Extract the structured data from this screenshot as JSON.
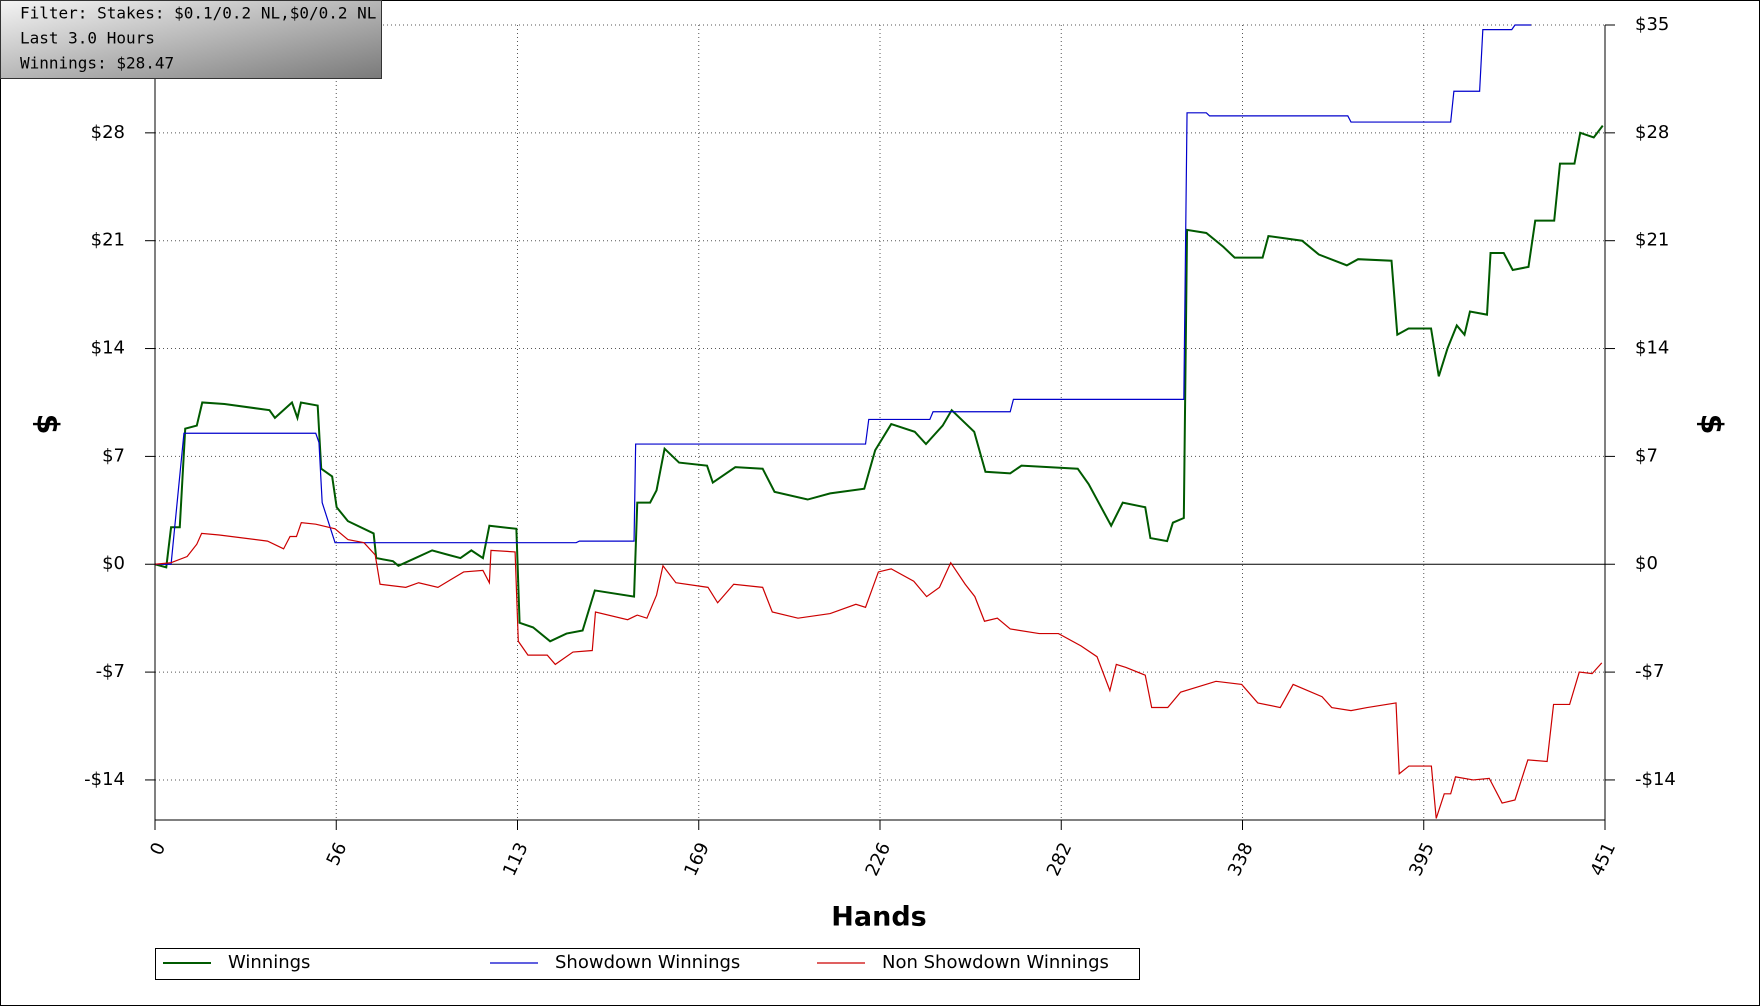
{
  "chart_data": {
    "type": "line",
    "annotations": [
      "Filter: Stakes: $0.1/0.2 NL,$0/0.2 NL",
      "Last 3.0 Hours",
      "Winnings: $28.47"
    ],
    "xlabel": "Hands",
    "ylabel": "$",
    "xlim": [
      0,
      451
    ],
    "xticks": [
      0,
      {
        "value": 56.375,
        "label": "56"
      },
      {
        "value": 112.75,
        "label": "113"
      },
      {
        "value": 169.125,
        "label": "169"
      },
      {
        "value": 225.5,
        "label": "226"
      },
      {
        "value": 281.875,
        "label": "282"
      },
      {
        "value": 338.25,
        "label": "338"
      },
      {
        "value": 394.625,
        "label": "395"
      },
      451
    ],
    "ylim": [
      -16.6,
      35
    ],
    "yticks": [
      {
        "value": -14,
        "label": "-$14"
      },
      {
        "value": -7,
        "label": "-$7"
      },
      {
        "value": 0,
        "label": "$0"
      },
      {
        "value": 7,
        "label": "$7"
      },
      {
        "value": 14,
        "label": "$14"
      },
      {
        "value": 21,
        "label": "$21"
      },
      {
        "value": 28,
        "label": "$28"
      },
      {
        "value": 35,
        "label": "$35"
      }
    ],
    "grid": true,
    "legend": "bottom",
    "series": [
      {
        "name": "Winnings",
        "color": "#005a00",
        "x": [
          0,
          3.5,
          5,
          7.7,
          9.4,
          13,
          14.7,
          21.6,
          35.6,
          37.3,
          42.6,
          44.3,
          45.4,
          50.6,
          51.7,
          55.1,
          56.5,
          60,
          68,
          68.8,
          74,
          75.7,
          81,
          86.2,
          91.4,
          95,
          98.4,
          102,
          104,
          112.4,
          113.4,
          117.6,
          122.9,
          128,
          133,
          136.8,
          149,
          150,
          154,
          156,
          158.5,
          163,
          171.7,
          173.5,
          180.5,
          189,
          192.7,
          203,
          210,
          220.6,
          224,
          229,
          236.3,
          239.8,
          245,
          247.8,
          254.8,
          258.3,
          266,
          269.5,
          287,
          290.4,
          297.4,
          301,
          308,
          309.6,
          314.8,
          316.6,
          320,
          321,
          327,
          332.3,
          335.8,
          344.5,
          346.3,
          356.8,
          362,
          370.7,
          374.2,
          384.6,
          386.4,
          389.9,
          396.9,
          399.3,
          402,
          404.9,
          407.3,
          409,
          414.3,
          415.4,
          419.5,
          422.3,
          427.2,
          429.3,
          435.2,
          437,
          441.5,
          443.3,
          447.5,
          450.3
        ],
        "values": [
          0,
          -0.2,
          2.4,
          2.4,
          8.8,
          9.0,
          10.5,
          10.4,
          10.0,
          9.5,
          10.5,
          9.5,
          10.5,
          10.3,
          6.2,
          5.7,
          3.7,
          2.8,
          2.0,
          0.4,
          0.2,
          -0.1,
          0.4,
          0.9,
          0.6,
          0.4,
          0.9,
          0.4,
          2.5,
          2.3,
          -3.8,
          -4.1,
          -5.0,
          -4.5,
          -4.3,
          -1.7,
          -2.1,
          4.0,
          4.0,
          4.8,
          7.5,
          6.6,
          6.4,
          5.3,
          6.3,
          6.2,
          4.7,
          4.2,
          4.6,
          4.9,
          7.4,
          9.1,
          8.6,
          7.8,
          9.0,
          10.0,
          8.6,
          6.0,
          5.9,
          6.4,
          6.2,
          5.2,
          2.5,
          4.0,
          3.7,
          1.7,
          1.5,
          2.7,
          3.0,
          21.7,
          21.5,
          20.6,
          19.9,
          19.9,
          21.3,
          21.0,
          20.1,
          19.4,
          19.8,
          19.7,
          14.9,
          15.3,
          15.3,
          12.2,
          14.0,
          15.5,
          14.9,
          16.4,
          16.2,
          20.2,
          20.2,
          19.1,
          19.3,
          22.3,
          22.3,
          26.0,
          26.0,
          28.0,
          27.7,
          28.47
        ]
      },
      {
        "name": "Showdown Winnings",
        "color": "#0000cc",
        "x": [
          0,
          5,
          9,
          50,
          51,
          52,
          56,
          131,
          132,
          149,
          149.5,
          221,
          222,
          241,
          242,
          266,
          267,
          320,
          321,
          327,
          328,
          371,
          372,
          403,
          404,
          412,
          413,
          422,
          423,
          428
        ],
        "values": [
          0,
          0,
          8.5,
          8.5,
          7.9,
          4.0,
          1.4,
          1.4,
          1.5,
          1.5,
          7.8,
          7.8,
          9.4,
          9.4,
          9.9,
          9.9,
          10.7,
          10.7,
          29.3,
          29.3,
          29.1,
          29.1,
          28.7,
          28.7,
          30.7,
          30.7,
          34.7,
          34.7,
          35,
          35
        ]
      },
      {
        "name": "Non Showdown Winnings",
        "color": "#cc0000",
        "x": [
          0,
          5,
          10,
          13,
          14.5,
          20,
          35,
          40,
          42,
          44,
          45.5,
          50,
          56,
          60,
          65,
          68.5,
          70,
          78,
          82,
          88,
          92,
          96,
          102,
          104,
          104.5,
          112,
          113,
          116,
          122,
          124.5,
          130,
          136,
          137,
          147,
          150,
          153,
          156,
          158,
          162,
          172,
          175,
          180,
          189,
          192,
          200,
          210,
          218,
          221,
          225,
          229,
          236,
          240,
          244,
          247.5,
          252,
          255,
          258,
          262,
          266,
          275,
          281,
          288,
          293,
          297,
          299,
          302,
          308,
          310,
          315,
          319,
          330,
          338,
          343,
          350,
          354,
          363,
          366,
          372,
          377,
          386,
          387,
          390,
          397,
          398.5,
          401,
          403,
          404.5,
          410,
          415,
          419,
          423,
          427,
          433,
          435,
          440,
          443,
          447,
          450
        ],
        "values": [
          0,
          0.1,
          0.5,
          1.3,
          2.0,
          1.9,
          1.5,
          1.0,
          1.8,
          1.8,
          2.7,
          2.6,
          2.3,
          1.6,
          1.4,
          0.6,
          -1.3,
          -1.5,
          -1.2,
          -1.5,
          -1.0,
          -0.5,
          -0.4,
          -1.2,
          0.9,
          0.8,
          -5.0,
          -5.9,
          -5.9,
          -6.5,
          -5.7,
          -5.6,
          -3.1,
          -3.6,
          -3.3,
          -3.5,
          -2.0,
          -0.1,
          -1.2,
          -1.5,
          -2.5,
          -1.3,
          -1.5,
          -3.1,
          -3.5,
          -3.2,
          -2.6,
          -2.8,
          -0.5,
          -0.3,
          -1.1,
          -2.1,
          -1.5,
          0.1,
          -1.3,
          -2.1,
          -3.7,
          -3.5,
          -4.2,
          -4.5,
          -4.5,
          -5.3,
          -6.0,
          -8.2,
          -6.5,
          -6.7,
          -7.2,
          -9.3,
          -9.3,
          -8.3,
          -7.6,
          -7.8,
          -9.0,
          -9.3,
          -7.8,
          -8.6,
          -9.3,
          -9.5,
          -9.3,
          -9.0,
          -13.6,
          -13.1,
          -13.1,
          -16.5,
          -14.9,
          -14.9,
          -13.8,
          -14.0,
          -13.9,
          -15.5,
          -15.3,
          -12.7,
          -12.8,
          -9.1,
          -9.1,
          -7.0,
          -7.1,
          -6.4
        ]
      }
    ]
  }
}
